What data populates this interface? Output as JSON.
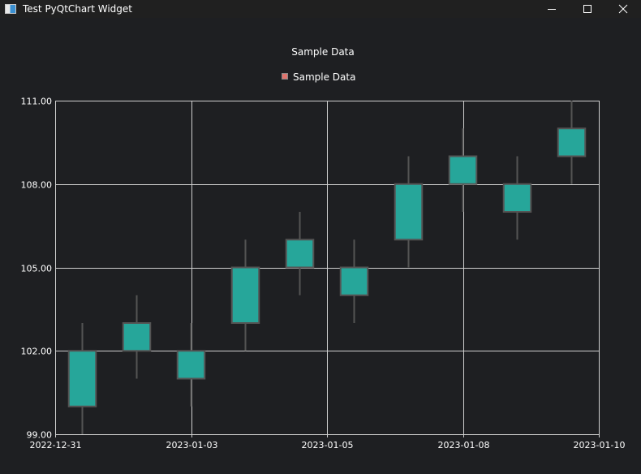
{
  "window": {
    "title": "Test PyQtChart Widget",
    "controls": [
      "minimize",
      "maximize",
      "close"
    ]
  },
  "colors": {
    "background": "#1e1f22",
    "titlebar": "#202020",
    "candle_fill": "#26a69a",
    "candle_border": "#545454",
    "grid": "#cfcfcf",
    "legend_marker": "#e0746e",
    "text": "#ffffff"
  },
  "chart_data": {
    "type": "candlestick",
    "title": "Sample Data",
    "legend": {
      "entries": [
        "Sample Data"
      ],
      "placement": "top-center"
    },
    "grid": true,
    "ylim": [
      99,
      111
    ],
    "y_ticks": [
      "99.00",
      "102.00",
      "105.00",
      "108.00",
      "111.00"
    ],
    "x_ticks": [
      "2022-12-31",
      "2023-01-03",
      "2023-01-05",
      "2023-01-08",
      "2023-01-10"
    ],
    "series": [
      {
        "name": "Sample Data",
        "candles": [
          {
            "open": 100,
            "high": 103,
            "low": 99,
            "close": 102
          },
          {
            "open": 102,
            "high": 104,
            "low": 101,
            "close": 103
          },
          {
            "open": 102,
            "high": 103,
            "low": 100,
            "close": 101
          },
          {
            "open": 103,
            "high": 106,
            "low": 102,
            "close": 105
          },
          {
            "open": 105,
            "high": 107,
            "low": 104,
            "close": 106
          },
          {
            "open": 104,
            "high": 106,
            "low": 103,
            "close": 105
          },
          {
            "open": 106,
            "high": 109,
            "low": 105,
            "close": 108
          },
          {
            "open": 108,
            "high": 110,
            "low": 107,
            "close": 109
          },
          {
            "open": 107,
            "high": 109,
            "low": 106,
            "close": 108
          },
          {
            "open": 109,
            "high": 111,
            "low": 108,
            "close": 110
          }
        ]
      }
    ]
  }
}
